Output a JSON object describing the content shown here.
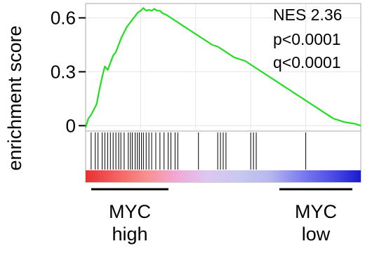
{
  "chart_data": {
    "type": "line",
    "ylabel": "enrichment score",
    "yticks": [
      "0.6",
      "0.3",
      "0"
    ],
    "ytick_values": [
      0.6,
      0.3,
      0
    ],
    "ylim": [
      -0.03,
      0.68
    ],
    "xlim": [
      0,
      100
    ],
    "grid": true,
    "line_color": "#22dd22",
    "stats": {
      "nes": "NES 2.36",
      "p": "p<0.0001",
      "q": "q<0.0001"
    },
    "series": [
      {
        "x": [
          0,
          1,
          2,
          3,
          4,
          5,
          6,
          7,
          8,
          9,
          10,
          11,
          12,
          13,
          14,
          15,
          16,
          17,
          18,
          19,
          20,
          21,
          22,
          23,
          24,
          25,
          26,
          27,
          28,
          29,
          30,
          31,
          32,
          33,
          34,
          35,
          36,
          37,
          38,
          40,
          42,
          44,
          46,
          48,
          50,
          52,
          54,
          56,
          58,
          60,
          62,
          64,
          66,
          68,
          70,
          72,
          74,
          76,
          78,
          80,
          82,
          84,
          86,
          88,
          90,
          92,
          94,
          96,
          98,
          100
        ],
        "y": [
          -0.01,
          0.04,
          0.06,
          0.09,
          0.12,
          0.2,
          0.27,
          0.33,
          0.31,
          0.35,
          0.39,
          0.41,
          0.45,
          0.49,
          0.52,
          0.55,
          0.57,
          0.59,
          0.61,
          0.63,
          0.64,
          0.655,
          0.64,
          0.645,
          0.64,
          0.65,
          0.64,
          0.64,
          0.625,
          0.62,
          0.61,
          0.6,
          0.59,
          0.58,
          0.57,
          0.56,
          0.55,
          0.54,
          0.53,
          0.51,
          0.49,
          0.47,
          0.45,
          0.44,
          0.42,
          0.4,
          0.38,
          0.37,
          0.36,
          0.34,
          0.32,
          0.3,
          0.28,
          0.26,
          0.24,
          0.22,
          0.2,
          0.18,
          0.16,
          0.14,
          0.12,
          0.1,
          0.08,
          0.06,
          0.04,
          0.03,
          0.02,
          0.015,
          0.01,
          0.0
        ]
      }
    ],
    "hits_x": [
      2,
      3.5,
      4.5,
      6,
      7,
      8,
      9,
      10,
      11,
      12,
      12.8,
      14,
      15.5,
      16.3,
      17,
      18,
      18.8,
      19.5,
      20.3,
      21,
      22,
      23,
      24,
      25.5,
      27,
      28.5,
      30,
      31,
      32.5,
      33.5,
      41,
      48,
      49,
      50,
      51,
      60,
      61,
      62,
      80
    ],
    "heatmap_colors": [
      "#e83030",
      "#f56060",
      "#f89090",
      "#f3a8d8",
      "#dcc8f0",
      "#c8c8f0",
      "#b8b8f0",
      "#8080f0",
      "#5050e6",
      "#1a1ad0"
    ],
    "group_high": [
      "MYC",
      "high"
    ],
    "group_low": [
      "MYC",
      "low"
    ]
  }
}
